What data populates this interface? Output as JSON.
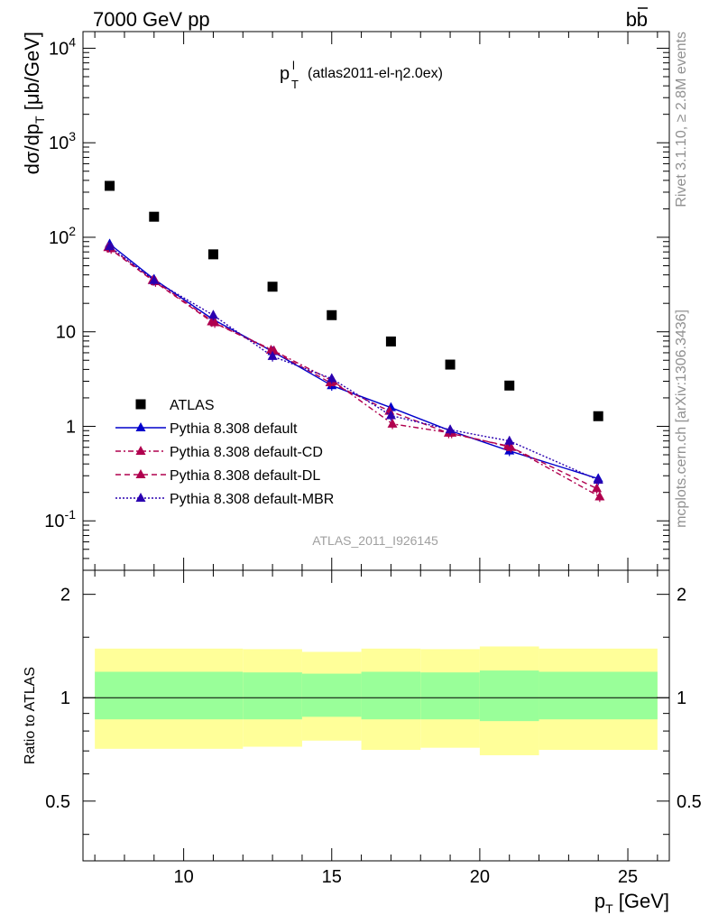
{
  "header": {
    "left": "7000 GeV pp",
    "right_b": "b",
    "right_bbar": "b"
  },
  "plot_title": {
    "main": "p",
    "sup": "l",
    "sub": "T",
    "rest": "(atlas2011-el-η2.0ex)"
  },
  "side_labels": {
    "rivet": "Rivet 3.1.10, ≥ 2.8M events",
    "mcplots": "mcplots.cern.ch [arXiv:1306.3436]"
  },
  "watermark": "ATLAS_2011_I926145",
  "colors": {
    "atlas": "#000000",
    "default": "#0000cc",
    "cd": "#b0004e",
    "dl": "#b0004e",
    "mbr": "#2a00b0",
    "band_inner": "#99ff99",
    "band_outer": "#ffff99"
  },
  "chart_data": [
    {
      "type": "scatter",
      "panel": "main",
      "ylabel": "dσ/dp_T [μb/GeV]",
      "yscale": "log",
      "xlim": [
        6.6,
        26.4
      ],
      "ylim": [
        0.03,
        15000
      ],
      "y_tick_labels": [
        "10^-1",
        "1",
        "10",
        "10^2",
        "10^3",
        "10^4"
      ],
      "legend_position": "bottom-left",
      "x": [
        7.5,
        9,
        11,
        13,
        15,
        17,
        19,
        21,
        24
      ],
      "series": [
        {
          "name": "ATLAS",
          "key": "atlas",
          "style": "points",
          "values": [
            350,
            165,
            66,
            30,
            15,
            7.9,
            4.5,
            2.7,
            1.28
          ]
        },
        {
          "name": "Pythia 8.308 default",
          "key": "default",
          "style": "solid",
          "values": [
            85,
            36,
            13.5,
            6.2,
            2.7,
            1.58,
            0.9,
            0.55,
            0.28
          ]
        },
        {
          "name": "Pythia 8.308 default-CD",
          "key": "cd",
          "style": "dashdot",
          "values": [
            76,
            34,
            12.5,
            6.3,
            3.0,
            1.06,
            0.85,
            0.6,
            0.18
          ]
        },
        {
          "name": "Pythia 8.308 default-DL",
          "key": "dl",
          "style": "dashed",
          "values": [
            78,
            35,
            12.8,
            6.4,
            2.9,
            1.45,
            0.85,
            0.62,
            0.22
          ]
        },
        {
          "name": "Pythia 8.308 default-MBR",
          "key": "mbr",
          "style": "dotted",
          "values": [
            80,
            35,
            15,
            5.5,
            3.2,
            1.3,
            0.92,
            0.7,
            0.27
          ]
        }
      ]
    },
    {
      "type": "area",
      "panel": "ratio",
      "xlabel": "p_T [GeV]",
      "ylabel": "Ratio to ATLAS",
      "xlim": [
        6.6,
        26.4
      ],
      "ylim": [
        0.335,
        2.35
      ],
      "yscale": "log",
      "x_tick_labels": [
        "10",
        "15",
        "20",
        "25"
      ],
      "y_tick_labels": [
        "0.5",
        "1",
        "2"
      ],
      "reference": 1,
      "bins": [
        {
          "lo": 7,
          "hi": 12,
          "inner": [
            0.865,
            1.19
          ],
          "outer": [
            0.71,
            1.39
          ]
        },
        {
          "lo": 12,
          "hi": 14,
          "inner": [
            0.865,
            1.185
          ],
          "outer": [
            0.72,
            1.385
          ]
        },
        {
          "lo": 14,
          "hi": 16,
          "inner": [
            0.88,
            1.175
          ],
          "outer": [
            0.75,
            1.36
          ]
        },
        {
          "lo": 16,
          "hi": 18,
          "inner": [
            0.865,
            1.19
          ],
          "outer": [
            0.705,
            1.39
          ]
        },
        {
          "lo": 18,
          "hi": 20,
          "inner": [
            0.865,
            1.185
          ],
          "outer": [
            0.715,
            1.385
          ]
        },
        {
          "lo": 20,
          "hi": 22,
          "inner": [
            0.855,
            1.2
          ],
          "outer": [
            0.68,
            1.41
          ]
        },
        {
          "lo": 22,
          "hi": 26,
          "inner": [
            0.865,
            1.19
          ],
          "outer": [
            0.705,
            1.39
          ]
        }
      ]
    }
  ]
}
